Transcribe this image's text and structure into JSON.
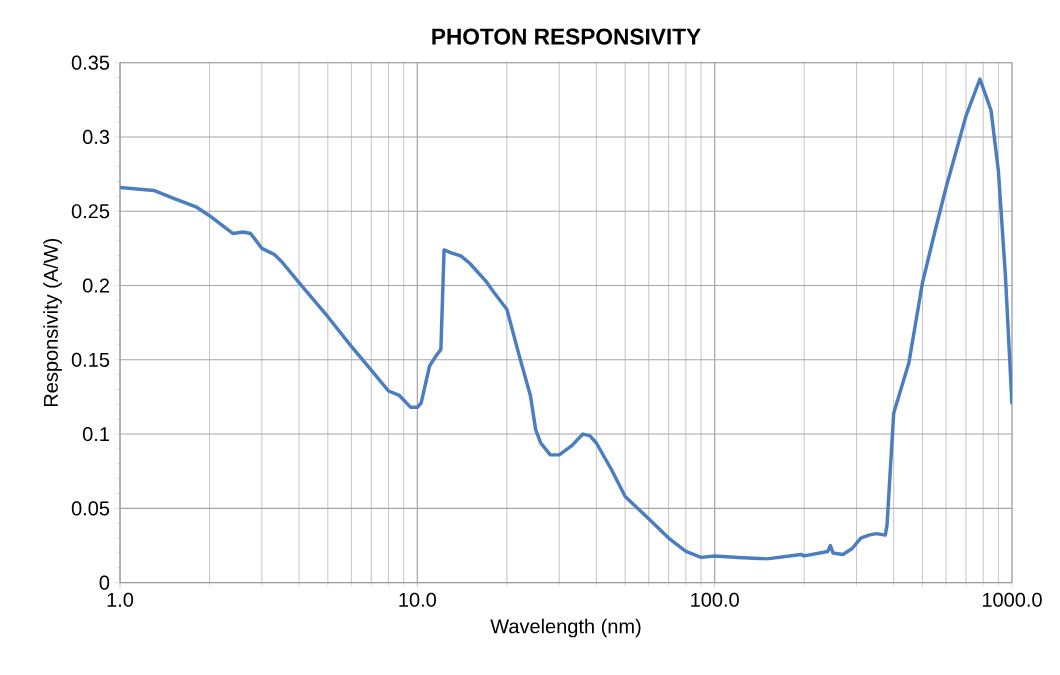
{
  "chart_data": {
    "type": "line",
    "title": "PHOTON RESPONSIVITY",
    "xlabel": "Wavelength (nm)",
    "ylabel": "Responsivity (A/W)",
    "log": "x",
    "grid": true,
    "marker": "none",
    "line_style": "solid",
    "xlim": [
      1,
      1000
    ],
    "ylim": [
      0,
      0.35
    ],
    "xticks": [
      {
        "value": 1,
        "label": "1.0"
      },
      {
        "value": 10,
        "label": "10.0"
      },
      {
        "value": 100,
        "label": "100.0"
      },
      {
        "value": 1000,
        "label": "1000.0"
      }
    ],
    "yticks": [
      0,
      0.05,
      {
        "value": 0.1,
        "label": "0.1"
      },
      0.15,
      {
        "value": 0.2,
        "label": "0.2"
      },
      0.25,
      {
        "value": 0.3,
        "label": "0.3"
      },
      0.35
    ],
    "series": [
      {
        "color": "#4a7ebf",
        "x": [
          1,
          1.3,
          1.5,
          1.8,
          2,
          2.4,
          2.6,
          2.75,
          3,
          3.3,
          3.5,
          4,
          5,
          6,
          7,
          8,
          8.7,
          9.5,
          10,
          10.3,
          11,
          11.5,
          12,
          12.3,
          13,
          14,
          15,
          17,
          18,
          20,
          22,
          24,
          25,
          26,
          28,
          30,
          33,
          36,
          38,
          40,
          45,
          50,
          60,
          70,
          80,
          90,
          100,
          120,
          150,
          195,
          200,
          240,
          245,
          250,
          270,
          290,
          310,
          330,
          350,
          375,
          380,
          400,
          450,
          500,
          550,
          600,
          700,
          780,
          850,
          900,
          950,
          1000
        ],
        "values": [
          0.266,
          0.264,
          0.259,
          0.253,
          0.247,
          0.235,
          0.236,
          0.235,
          0.225,
          0.221,
          0.216,
          0.202,
          0.179,
          0.159,
          0.143,
          0.129,
          0.126,
          0.118,
          0.118,
          0.121,
          0.146,
          0.152,
          0.157,
          0.224,
          0.222,
          0.22,
          0.215,
          0.203,
          0.196,
          0.184,
          0.153,
          0.126,
          0.103,
          0.094,
          0.086,
          0.086,
          0.092,
          0.1,
          0.099,
          0.094,
          0.076,
          0.058,
          0.043,
          0.03,
          0.021,
          0.017,
          0.018,
          0.017,
          0.016,
          0.019,
          0.018,
          0.021,
          0.025,
          0.02,
          0.019,
          0.023,
          0.03,
          0.032,
          0.033,
          0.032,
          0.039,
          0.114,
          0.148,
          0.202,
          0.236,
          0.266,
          0.314,
          0.339,
          0.318,
          0.277,
          0.207,
          0.12
        ]
      }
    ]
  }
}
